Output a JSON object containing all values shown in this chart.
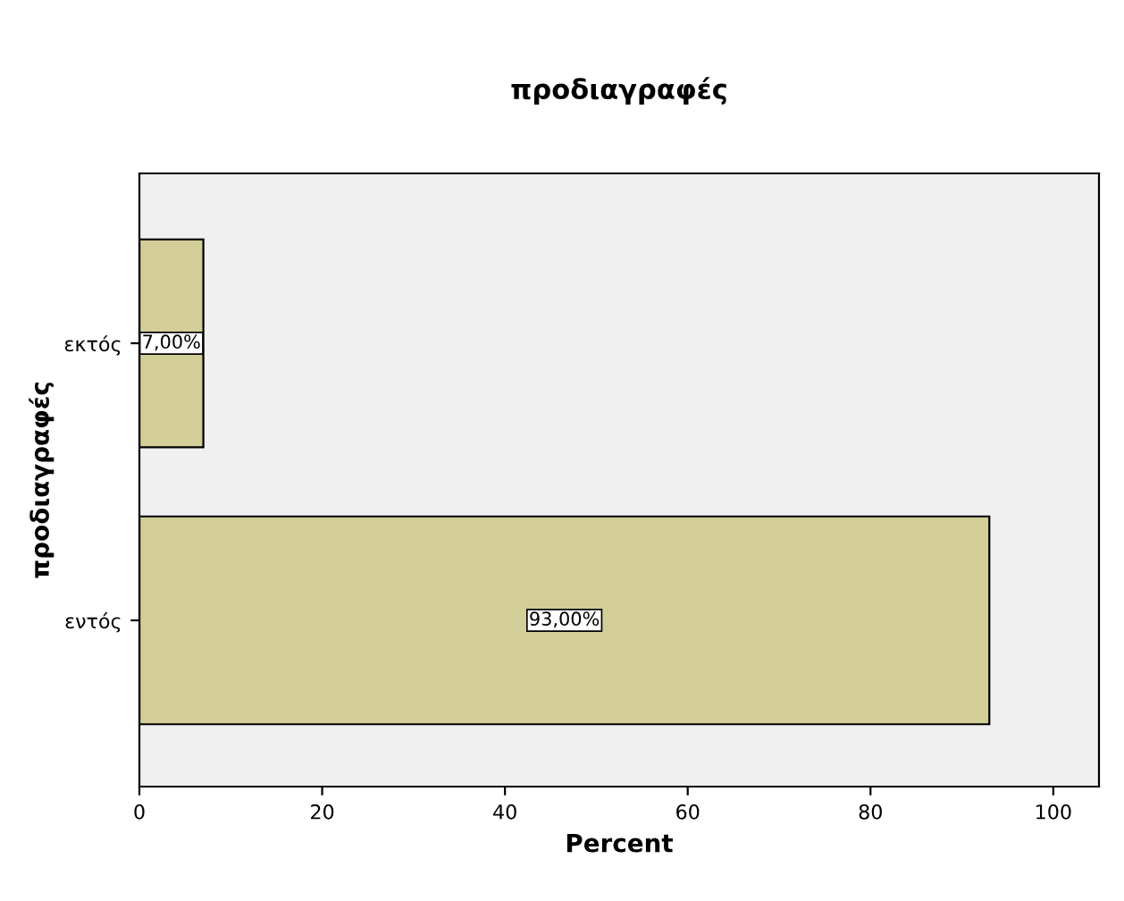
{
  "chart_data": {
    "type": "bar",
    "orientation": "horizontal",
    "title": "προδιαγραφές",
    "xlabel": "Percent",
    "ylabel": "προδιαγραφές",
    "categories": [
      "εκτός",
      "εντός"
    ],
    "values": [
      7,
      93
    ],
    "value_labels": [
      "7,00%",
      "93,00%"
    ],
    "color": "#d3ce97",
    "xlim": [
      0,
      105
    ],
    "xticks": [
      0,
      20,
      40,
      60,
      80,
      100
    ],
    "grid": false,
    "legend": false
  }
}
